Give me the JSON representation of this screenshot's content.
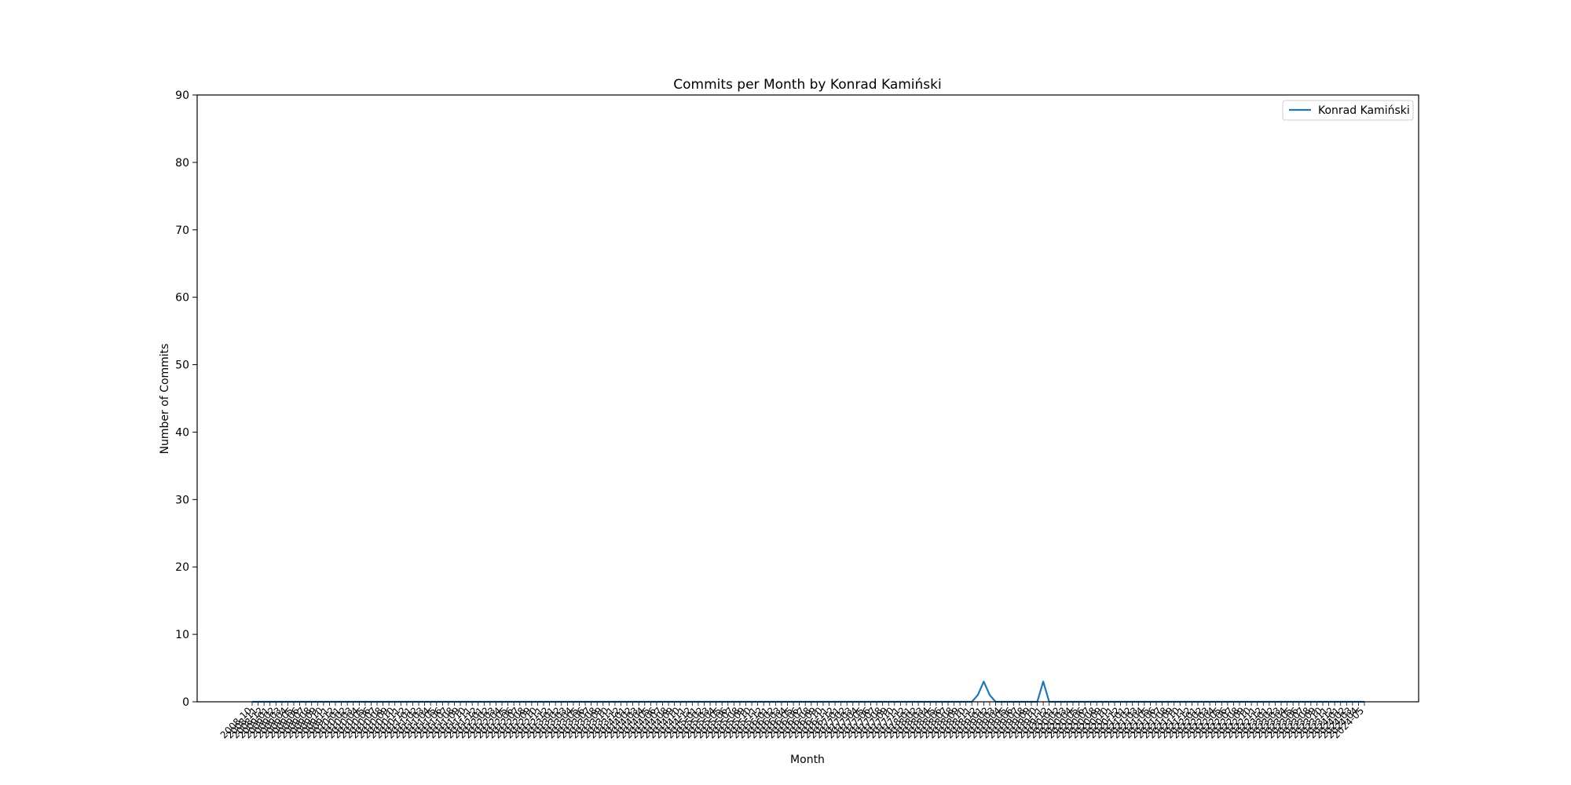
{
  "chart_data": {
    "type": "line",
    "title": "Commits per Month by Konrad Kamiński",
    "xlabel": "Month",
    "ylabel": "Number of Commits",
    "ylim": [
      0,
      90
    ],
    "yticks": [
      0,
      10,
      20,
      30,
      40,
      50,
      60,
      70,
      80,
      90
    ],
    "grid": false,
    "legend_position": "top-right",
    "x_start": "2008-10",
    "x_end": "2024-05",
    "series": [
      {
        "name": "Konrad Kamiński",
        "color": "#1f77b4",
        "points": [
          {
            "x": "2018-11",
            "y": 0
          },
          {
            "x": "2018-12",
            "y": 1
          },
          {
            "x": "2019-01",
            "y": 3
          },
          {
            "x": "2019-02",
            "y": 1
          },
          {
            "x": "2019-03",
            "y": 0
          },
          {
            "x": "2019-10",
            "y": 0
          },
          {
            "x": "2019-11",
            "y": 3
          },
          {
            "x": "2019-12",
            "y": 0
          }
        ]
      }
    ]
  }
}
